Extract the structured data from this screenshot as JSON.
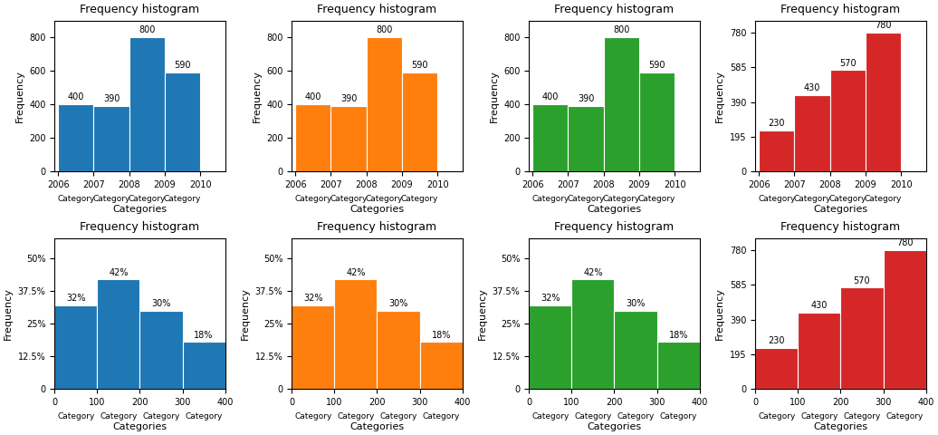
{
  "chart_data": [
    {
      "type": "histogram",
      "title": "Frequency histogram",
      "x_label": "Categories",
      "y_label": "Frequency",
      "categories": [
        "Category",
        "Category",
        "Category",
        "Category"
      ],
      "bins": [
        2006,
        2007,
        2008,
        2009,
        2010
      ],
      "values": [
        400,
        390,
        800,
        590
      ],
      "data_labels": true,
      "xlim": [
        2005.9,
        2010.7
      ],
      "xticks": [
        2006,
        2007,
        2008,
        2009,
        2010
      ],
      "ylim": [
        0,
        900
      ],
      "yticks": [
        0,
        200,
        400,
        600,
        800
      ]
    },
    {
      "type": "histogram",
      "title": "Frequency histogram",
      "x_label": "Categories",
      "y_label": "Frequency",
      "categories": [
        "Category",
        "Category",
        "Category",
        "Category"
      ],
      "bins": [
        2006,
        2007,
        2008,
        2009,
        2010
      ],
      "values": [
        400,
        390,
        800,
        590
      ],
      "data_labels": true,
      "xlim": [
        2005.9,
        2010.7
      ],
      "xticks": [
        2006,
        2007,
        2008,
        2009,
        2010
      ],
      "ylim": [
        0,
        900
      ],
      "yticks": [
        0,
        200,
        400,
        600,
        800
      ]
    },
    {
      "type": "histogram",
      "title": "Frequency histogram",
      "x_label": "Categories",
      "y_label": "Frequency",
      "categories": [
        "Category",
        "Category",
        "Category",
        "Category"
      ],
      "bins": [
        2006,
        2007,
        2008,
        2009,
        2010
      ],
      "values": [
        400,
        390,
        800,
        590
      ],
      "data_labels": true,
      "xlim": [
        2005.9,
        2010.7
      ],
      "xticks": [
        2006,
        2007,
        2008,
        2009,
        2010
      ],
      "ylim": [
        0,
        900
      ],
      "yticks": [
        0,
        200,
        400,
        600,
        800
      ]
    },
    {
      "type": "histogram",
      "title": "Frequency histogram",
      "x_label": "Categories",
      "y_label": "Frequency",
      "categories": [
        "Category",
        "Category",
        "Category",
        "Category"
      ],
      "bins": [
        2006,
        2007,
        2008,
        2009,
        2010
      ],
      "values": [
        230,
        430,
        570,
        780
      ],
      "data_labels": true,
      "xlim": [
        2005.9,
        2010.7
      ],
      "xticks": [
        2006,
        2007,
        2008,
        2009,
        2010
      ],
      "ylim": [
        0,
        850
      ],
      "yticks": [
        0,
        195,
        390,
        585,
        780
      ]
    },
    {
      "type": "histogram",
      "title": "Frequency histogram",
      "x_label": "Categories",
      "y_label": "Frequency",
      "categories": [
        "Category",
        "Category",
        "Category",
        "Category"
      ],
      "bins": [
        0,
        100,
        200,
        300,
        400
      ],
      "values": [
        32,
        42,
        30,
        18
      ],
      "value_labels": [
        "32%",
        "42%",
        "30%",
        "18%"
      ],
      "data_labels": true,
      "xlim": [
        0,
        400
      ],
      "xticks": [
        0,
        100,
        200,
        300,
        400
      ],
      "ylim": [
        0,
        58
      ],
      "yticks": [
        0,
        {
          "value": 12.5,
          "label": "12.5%"
        },
        {
          "value": 25,
          "label": "25%"
        },
        {
          "value": 37.5,
          "label": "37.5%"
        },
        {
          "value": 50,
          "label": "50%"
        }
      ]
    },
    {
      "type": "histogram",
      "title": "Frequency histogram",
      "x_label": "Categories",
      "y_label": "Frequency",
      "categories": [
        "Category",
        "Category",
        "Category",
        "Category"
      ],
      "bins": [
        0,
        100,
        200,
        300,
        400
      ],
      "values": [
        32,
        42,
        30,
        18
      ],
      "value_labels": [
        "32%",
        "42%",
        "30%",
        "18%"
      ],
      "data_labels": true,
      "xlim": [
        0,
        400
      ],
      "xticks": [
        0,
        100,
        200,
        300,
        400
      ],
      "ylim": [
        0,
        58
      ],
      "yticks": [
        0,
        {
          "value": 12.5,
          "label": "12.5%"
        },
        {
          "value": 25,
          "label": "25%"
        },
        {
          "value": 37.5,
          "label": "37.5%"
        },
        {
          "value": 50,
          "label": "50%"
        }
      ]
    },
    {
      "type": "histogram",
      "title": "Frequency histogram",
      "x_label": "Categories",
      "y_label": "Frequency",
      "categories": [
        "Category",
        "Category",
        "Category",
        "Category"
      ],
      "bins": [
        0,
        100,
        200,
        300,
        400
      ],
      "values": [
        32,
        42,
        30,
        18
      ],
      "value_labels": [
        "32%",
        "42%",
        "30%",
        "18%"
      ],
      "data_labels": true,
      "xlim": [
        0,
        400
      ],
      "xticks": [
        0,
        100,
        200,
        300,
        400
      ],
      "ylim": [
        0,
        58
      ],
      "yticks": [
        0,
        {
          "value": 12.5,
          "label": "12.5%"
        },
        {
          "value": 25,
          "label": "25%"
        },
        {
          "value": 37.5,
          "label": "37.5%"
        },
        {
          "value": 50,
          "label": "50%"
        }
      ]
    },
    {
      "type": "histogram",
      "title": "Frequency histogram",
      "x_label": "Categories",
      "y_label": "Frequency",
      "categories": [
        "Category",
        "Category",
        "Category",
        "Category"
      ],
      "bins": [
        0,
        100,
        200,
        300,
        400
      ],
      "values": [
        230,
        430,
        570,
        780
      ],
      "data_labels": true,
      "xlim": [
        0,
        400
      ],
      "xticks": [
        0,
        100,
        200,
        300,
        400
      ],
      "ylim": [
        0,
        850
      ],
      "yticks": [
        0,
        195,
        390,
        585,
        780
      ]
    }
  ]
}
